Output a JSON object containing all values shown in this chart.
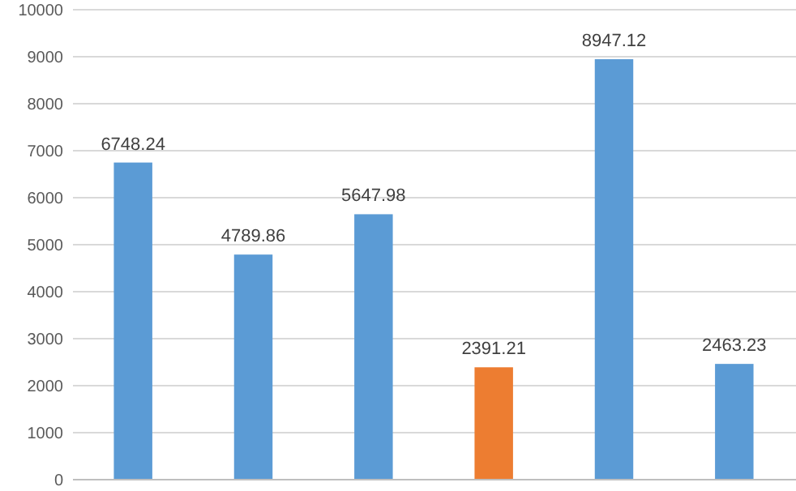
{
  "chart_data": {
    "type": "bar",
    "categories": [
      null,
      null,
      null,
      null,
      null,
      null
    ],
    "values": [
      6748.24,
      4789.86,
      5647.98,
      2391.21,
      8947.12,
      2463.23
    ],
    "colors": [
      "#5b9bd5",
      "#5b9bd5",
      "#5b9bd5",
      "#ed7d31",
      "#5b9bd5",
      "#5b9bd5"
    ],
    "ylim": [
      0,
      10000
    ],
    "yticks": [
      0,
      1000,
      2000,
      3000,
      4000,
      5000,
      6000,
      7000,
      8000,
      9000,
      10000
    ],
    "grid": "y",
    "data_labels": true
  }
}
